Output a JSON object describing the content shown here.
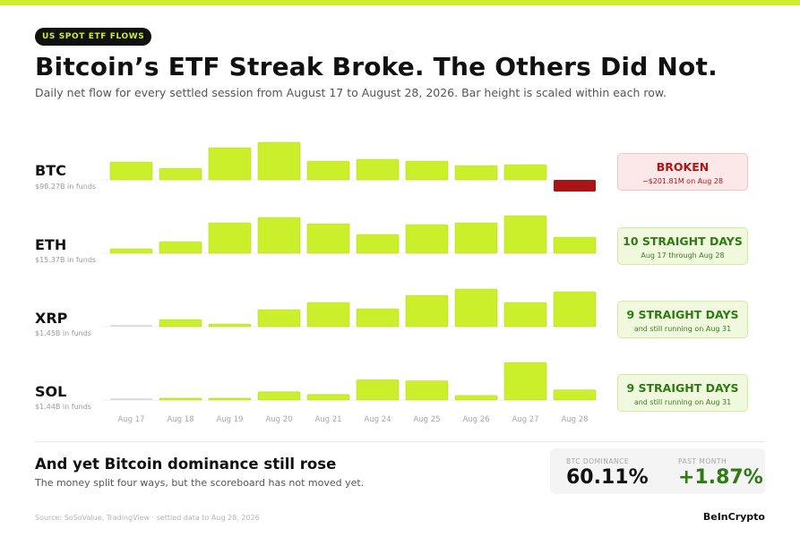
{
  "header": {
    "eyebrow": "US SPOT ETF FLOWS",
    "title": "Bitcoin’s ETF Streak Broke. The Others Did Not.",
    "subtitle": "Daily net flow for every settled session from August 17 to August 28, 2026. Bar height is scaled within each row."
  },
  "chart_data": {
    "type": "bar",
    "categories": [
      "Aug 17",
      "Aug 18",
      "Aug 19",
      "Aug 20",
      "Aug 21",
      "Aug 24",
      "Aug 25",
      "Aug 26",
      "Aug 27",
      "Aug 28"
    ],
    "scaling": "per-row",
    "rows": [
      {
        "ticker": "BTC",
        "funds": "$98.27B in funds",
        "values": [
          20,
          13,
          36,
          42,
          21,
          23,
          21,
          16,
          17,
          -13
        ],
        "status_kind": "broken",
        "status_main": "BROKEN",
        "status_sub": "−$201.81M on Aug 28"
      },
      {
        "ticker": "ETH",
        "funds": "$15.37B in funds",
        "values": [
          5,
          13,
          34,
          40,
          33,
          21,
          32,
          34,
          42,
          18
        ],
        "status_kind": "streak",
        "status_main": "10 STRAIGHT DAYS",
        "status_sub": "Aug 17 through Aug 28"
      },
      {
        "ticker": "XRP",
        "funds": "$1.45B in funds",
        "values": [
          0,
          8,
          3,
          19,
          27,
          20,
          35,
          42,
          27,
          39
        ],
        "status_kind": "streak",
        "status_main": "9 STRAIGHT DAYS",
        "status_sub": "and still running on Aug 31"
      },
      {
        "ticker": "SOL",
        "funds": "$1.44B in funds",
        "values": [
          0,
          2,
          2,
          9,
          6,
          22,
          21,
          5,
          41,
          11
        ],
        "status_kind": "streak",
        "status_main": "9 STRAIGHT DAYS",
        "status_sub": "and still running on Aug 31"
      }
    ],
    "colors": {
      "inflow": "#cbef2b",
      "outflow": "#a91515",
      "zero": "#dddddd"
    },
    "legend": "none",
    "grid": false
  },
  "bottom": {
    "title": "And yet Bitcoin dominance still rose",
    "subtitle": "The money split four ways, but the scoreboard has not moved yet.",
    "dominance_label": "BTC DOMINANCE",
    "dominance_value": "60.11%",
    "change_label": "PAST MONTH",
    "change_value": "+1.87%"
  },
  "footer": {
    "source": "Source: SoSoValue, TradingView · settled data to Aug 28, 2026",
    "brand": "BeInCrypto"
  }
}
